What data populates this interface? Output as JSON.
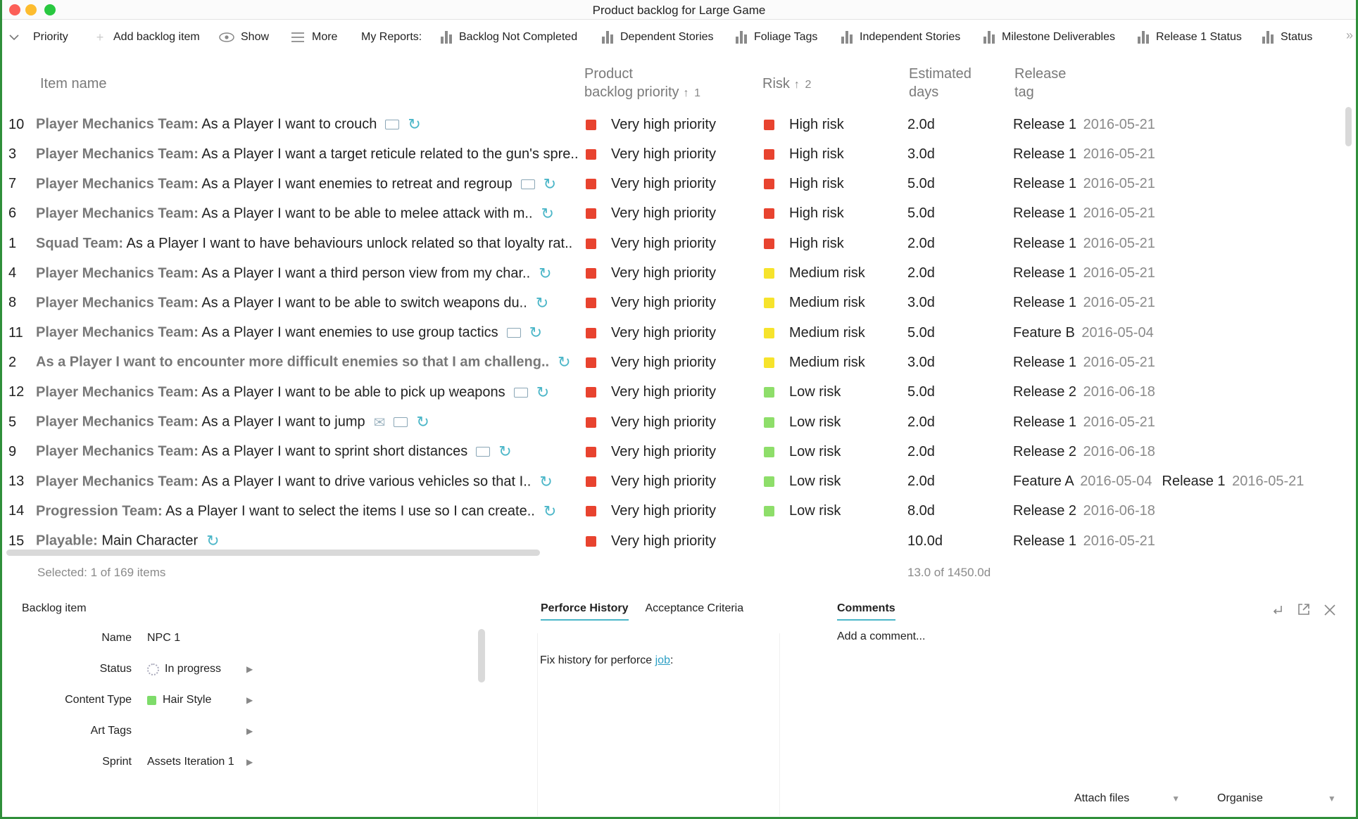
{
  "window": {
    "title": "Product backlog for Large Game"
  },
  "toolbar": {
    "priority_label": "Priority",
    "add_label": "Add backlog item",
    "show_label": "Show",
    "more_label": "More",
    "reports_label": "My Reports:",
    "reports": [
      "Backlog Not Completed",
      "Dependent Stories",
      "Foliage Tags",
      "Independent Stories",
      "Milestone Deliverables",
      "Release 1 Status",
      "Status"
    ],
    "overflow": "»"
  },
  "columns": {
    "item_name": "Item name",
    "priority_line1": "Product",
    "priority_line2": "backlog priority",
    "priority_sort": "1",
    "risk": "Risk",
    "risk_sort": "2",
    "est_line1": "Estimated",
    "est_line2": "days",
    "rel_line1": "Release",
    "rel_line2": "tag"
  },
  "colors": {
    "very_high": "#e8432f",
    "high_risk": "#e8432f",
    "medium_risk": "#f6e32c",
    "low_risk": "#8ede6a",
    "accent": "#4bb6c8"
  },
  "rows": [
    {
      "num": "10",
      "team": "Player Mechanics Team:",
      "text": " As a Player I want to crouch",
      "priority": "Very high priority",
      "risk": "High risk",
      "risk_color": "#e8432f",
      "est": "2.0d",
      "rel": "Release 1",
      "date": "2016-05-21",
      "rel2": "",
      "date2": ""
    },
    {
      "num": "3",
      "team": "Player Mechanics Team:",
      "text": " As a Player I want a target reticule related to the gun's spre..",
      "priority": "Very high priority",
      "risk": "High risk",
      "risk_color": "#e8432f",
      "est": "3.0d",
      "rel": "Release 1",
      "date": "2016-05-21",
      "rel2": "",
      "date2": ""
    },
    {
      "num": "7",
      "team": "Player Mechanics Team:",
      "text": " As a Player I want enemies to retreat and regroup",
      "priority": "Very high priority",
      "risk": "High risk",
      "risk_color": "#e8432f",
      "est": "5.0d",
      "rel": "Release 1",
      "date": "2016-05-21",
      "rel2": "",
      "date2": ""
    },
    {
      "num": "6",
      "team": "Player Mechanics Team:",
      "text": " As a Player I want to be able to melee attack with m..",
      "priority": "Very high priority",
      "risk": "High risk",
      "risk_color": "#e8432f",
      "est": "5.0d",
      "rel": "Release 1",
      "date": "2016-05-21",
      "rel2": "",
      "date2": ""
    },
    {
      "num": "1",
      "team": "Squad Team:",
      "text": " As a Player I want to have behaviours unlock related so that loyalty rat..",
      "priority": "Very high priority",
      "risk": "High risk",
      "risk_color": "#e8432f",
      "est": "2.0d",
      "rel": "Release 1",
      "date": "2016-05-21",
      "rel2": "",
      "date2": ""
    },
    {
      "num": "4",
      "team": "Player Mechanics Team:",
      "text": " As a Player I want a third person view from my char..",
      "priority": "Very high priority",
      "risk": "Medium risk",
      "risk_color": "#f6e32c",
      "est": "2.0d",
      "rel": "Release 1",
      "date": "2016-05-21",
      "rel2": "",
      "date2": ""
    },
    {
      "num": "8",
      "team": "Player Mechanics Team:",
      "text": " As a Player I want to be able to switch weapons du..",
      "priority": "Very high priority",
      "risk": "Medium risk",
      "risk_color": "#f6e32c",
      "est": "3.0d",
      "rel": "Release 1",
      "date": "2016-05-21",
      "rel2": "",
      "date2": ""
    },
    {
      "num": "11",
      "team": "Player Mechanics Team:",
      "text": " As a Player I want enemies to use group tactics",
      "priority": "Very high priority",
      "risk": "Medium risk",
      "risk_color": "#f6e32c",
      "est": "5.0d",
      "rel": "Feature B",
      "date": "2016-05-04",
      "rel2": "",
      "date2": ""
    },
    {
      "num": "2",
      "team": "As a Player I want to encounter more difficult enemies so that I am challeng..",
      "text": "",
      "priority": "Very high priority",
      "risk": "Medium risk",
      "risk_color": "#f6e32c",
      "est": "3.0d",
      "rel": "Release 1",
      "date": "2016-05-21",
      "rel2": "",
      "date2": ""
    },
    {
      "num": "12",
      "team": "Player Mechanics Team:",
      "text": " As a Player I want to be able to pick up weapons",
      "priority": "Very high priority",
      "risk": "Low risk",
      "risk_color": "#8ede6a",
      "est": "5.0d",
      "rel": "Release 2",
      "date": "2016-06-18",
      "rel2": "",
      "date2": ""
    },
    {
      "num": "5",
      "team": "Player Mechanics Team:",
      "text": " As a Player I want to jump",
      "priority": "Very high priority",
      "risk": "Low risk",
      "risk_color": "#8ede6a",
      "est": "2.0d",
      "rel": "Release 1",
      "date": "2016-05-21",
      "rel2": "",
      "date2": ""
    },
    {
      "num": "9",
      "team": "Player Mechanics Team:",
      "text": " As a Player I want to sprint short distances",
      "priority": "Very high priority",
      "risk": "Low risk",
      "risk_color": "#8ede6a",
      "est": "2.0d",
      "rel": "Release 2",
      "date": "2016-06-18",
      "rel2": "",
      "date2": ""
    },
    {
      "num": "13",
      "team": "Player Mechanics Team:",
      "text": " As a Player I want to drive various vehicles so that I..",
      "priority": "Very high priority",
      "risk": "Low risk",
      "risk_color": "#8ede6a",
      "est": "2.0d",
      "rel": "Feature A",
      "date": "2016-05-04",
      "rel2": "Release 1",
      "date2": "2016-05-21"
    },
    {
      "num": "14",
      "team": "Progression Team:",
      "text": " As a Player I want to select the items I use so I can create..",
      "priority": "Very high priority",
      "risk": "Low risk",
      "risk_color": "#8ede6a",
      "est": "8.0d",
      "rel": "Release 2",
      "date": "2016-06-18",
      "rel2": "",
      "date2": ""
    },
    {
      "num": "15",
      "team": "Playable:",
      "text": " Main Character",
      "priority": "Very high priority",
      "risk": "",
      "risk_color": "",
      "est": "10.0d",
      "rel": "Release 1",
      "date": "2016-05-21",
      "rel2": "",
      "date2": ""
    }
  ],
  "row_icons": [
    [
      "note",
      "link"
    ],
    [],
    [
      "note",
      "link"
    ],
    [
      "link"
    ],
    [],
    [
      "link"
    ],
    [
      "link"
    ],
    [
      "note",
      "link"
    ],
    [
      "link"
    ],
    [
      "note",
      "link"
    ],
    [
      "env",
      "note",
      "link"
    ],
    [
      "note",
      "link"
    ],
    [
      "link"
    ],
    [
      "link"
    ],
    [
      "link"
    ]
  ],
  "footer": {
    "selected": "Selected: 1 of 169 items",
    "sum": "13.0 of 1450.0d"
  },
  "detail": {
    "title": "Backlog item",
    "fields": [
      {
        "label": "Name",
        "value": "NPC 1",
        "kind": "text"
      },
      {
        "label": "Status",
        "value": "In progress",
        "kind": "status"
      },
      {
        "label": "Content Type",
        "value": "Hair Style",
        "kind": "swatch"
      },
      {
        "label": "Art Tags",
        "value": "",
        "kind": "empty"
      },
      {
        "label": "Sprint",
        "value": "Assets Iteration 1",
        "kind": "plain"
      }
    ],
    "tabs": [
      "Perforce History",
      "Acceptance Criteria"
    ],
    "perforce_text": "Fix history for perforce ",
    "perforce_link": "job",
    "perforce_colon": ":",
    "comments_tab": "Comments",
    "comment_placeholder": "Add a comment...",
    "attach_label": "Attach files",
    "organise_label": "Organise"
  }
}
